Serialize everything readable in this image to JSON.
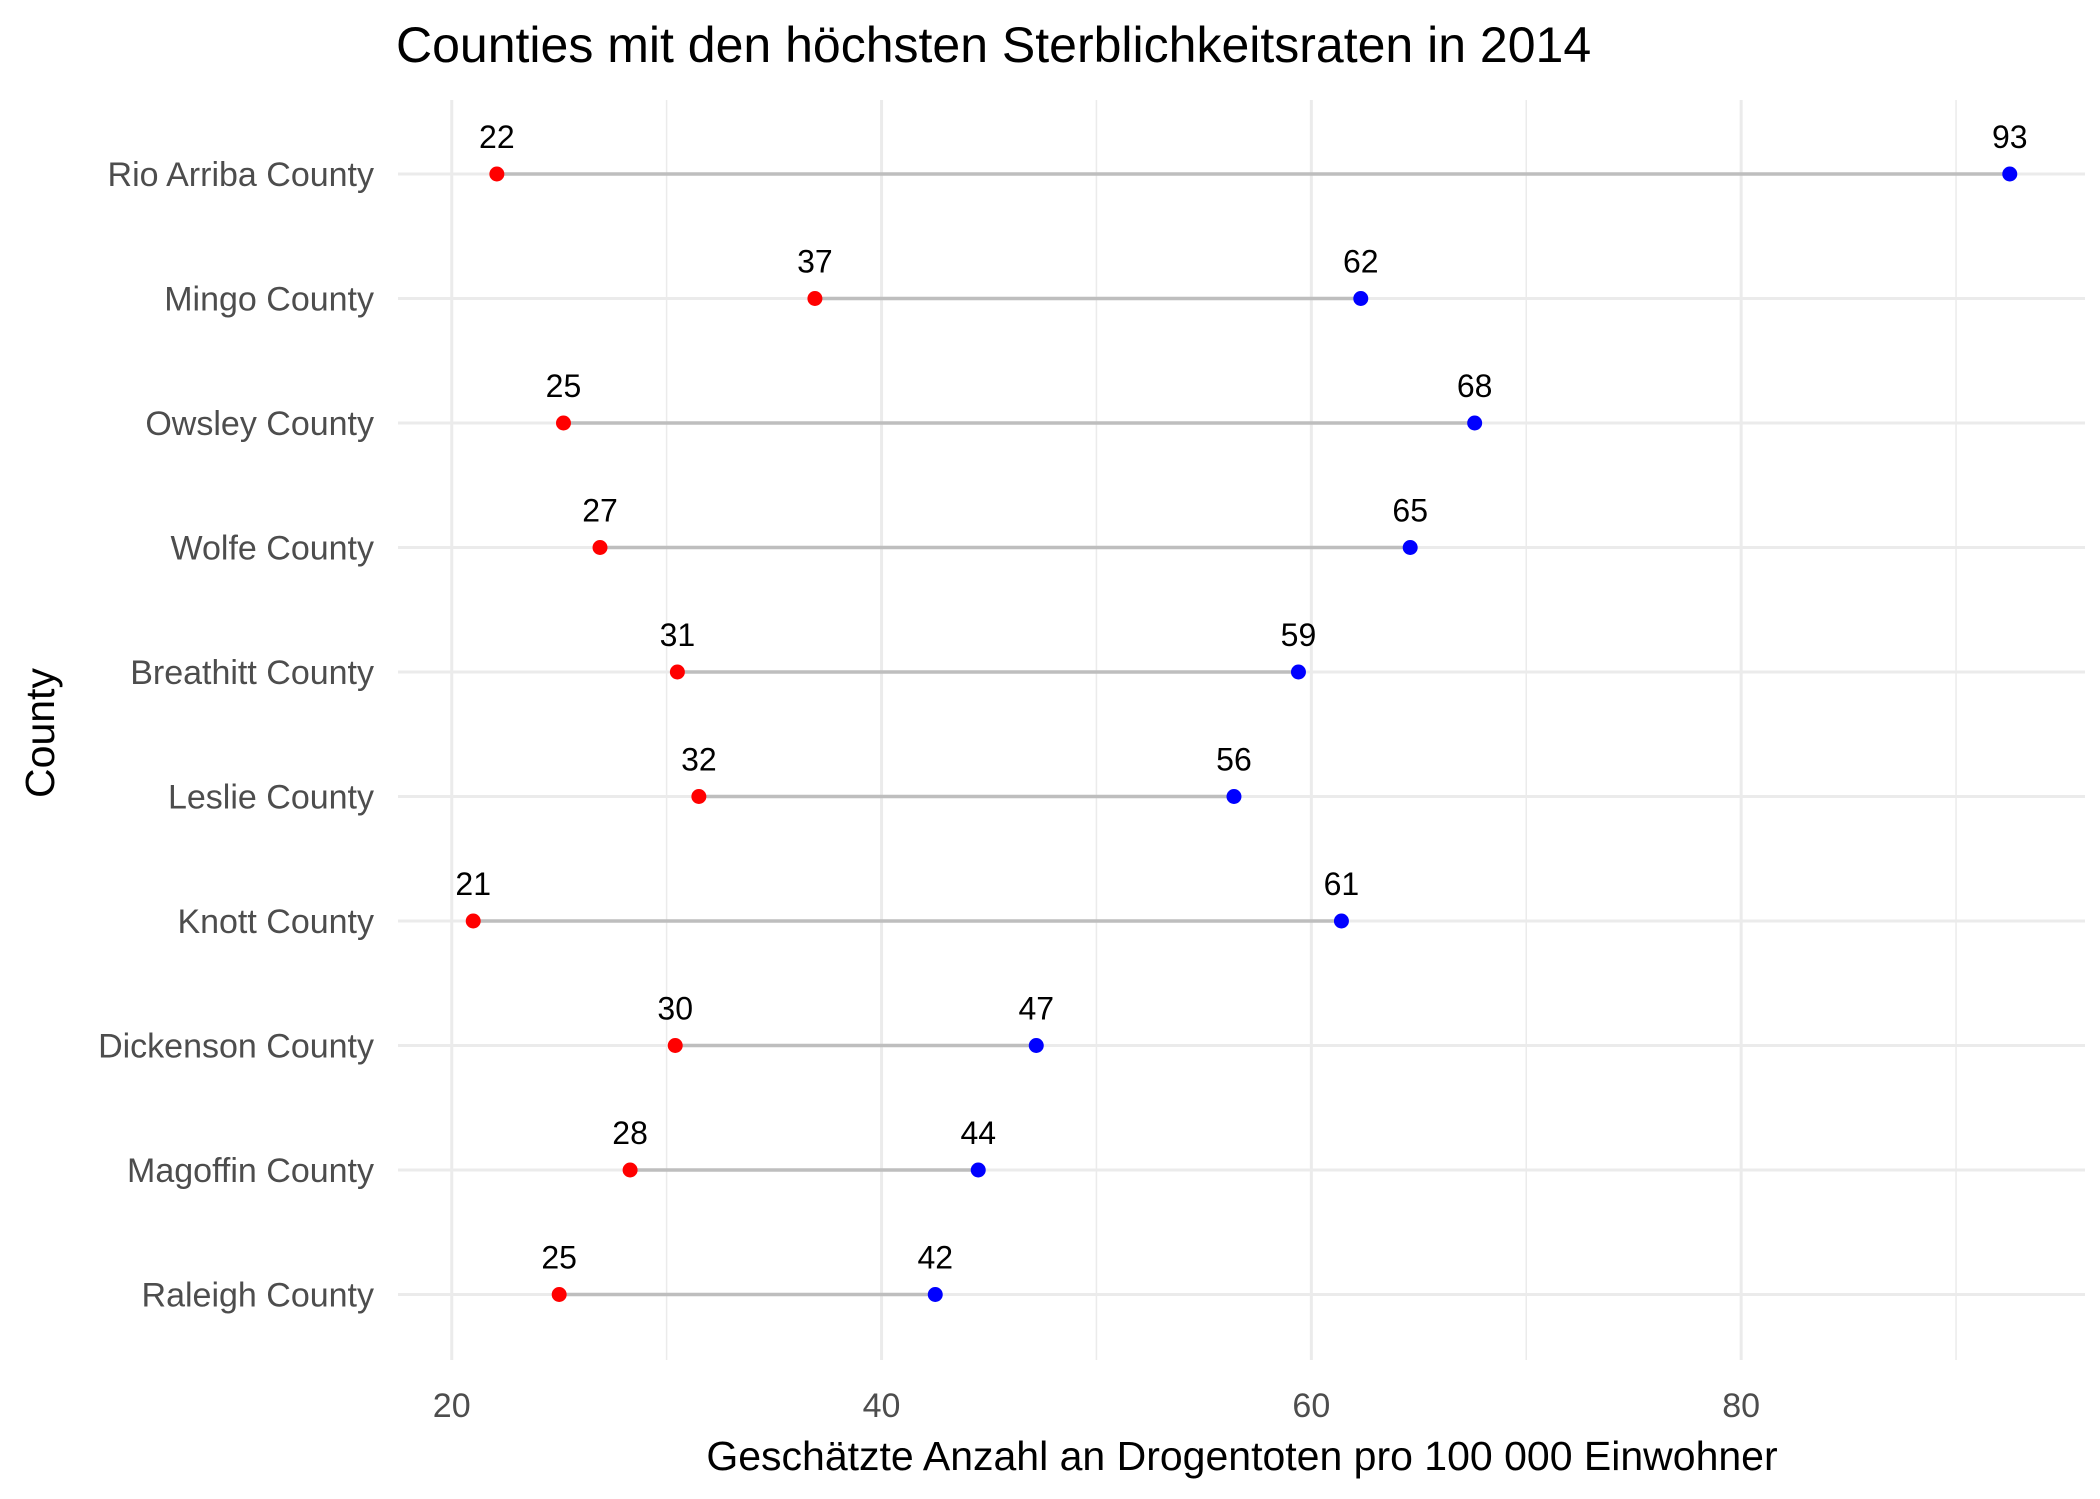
{
  "chart_data": {
    "type": "dumbbell",
    "title": "Counties mit den höchsten Sterblichkeitsraten in 2014",
    "xlabel": "Geschätzte Anzahl an Drogentoten pro 100 000 Einwohner",
    "ylabel": "County",
    "xlim": [
      17.5,
      96
    ],
    "x_ticks": [
      20,
      40,
      60,
      80
    ],
    "x_tick_labels": [
      "20",
      "40",
      "60",
      "80"
    ],
    "grid": true,
    "categories": [
      "Rio Arriba County",
      "Mingo County",
      "Owsley County",
      "Wolfe County",
      "Breathitt County",
      "Leslie County",
      "Knott County",
      "Dickenson County",
      "Magoffin County",
      "Raleigh County"
    ],
    "series": [
      {
        "color": "#ff0000",
        "values": [
          22.1,
          36.9,
          25.2,
          26.9,
          30.5,
          31.5,
          21.0,
          30.4,
          28.3,
          25.0
        ],
        "labels": [
          "22",
          "37",
          "25",
          "27",
          "31",
          "32",
          "21",
          "30",
          "28",
          "25"
        ]
      },
      {
        "color": "#0000ff",
        "values": [
          92.5,
          62.3,
          67.6,
          64.6,
          59.4,
          56.4,
          61.4,
          47.2,
          44.5,
          42.5
        ],
        "labels": [
          "93",
          "62",
          "68",
          "65",
          "59",
          "56",
          "61",
          "47",
          "44",
          "42"
        ]
      }
    ],
    "segment_color": "#bebebe",
    "grid_color": "#ebebeb"
  }
}
